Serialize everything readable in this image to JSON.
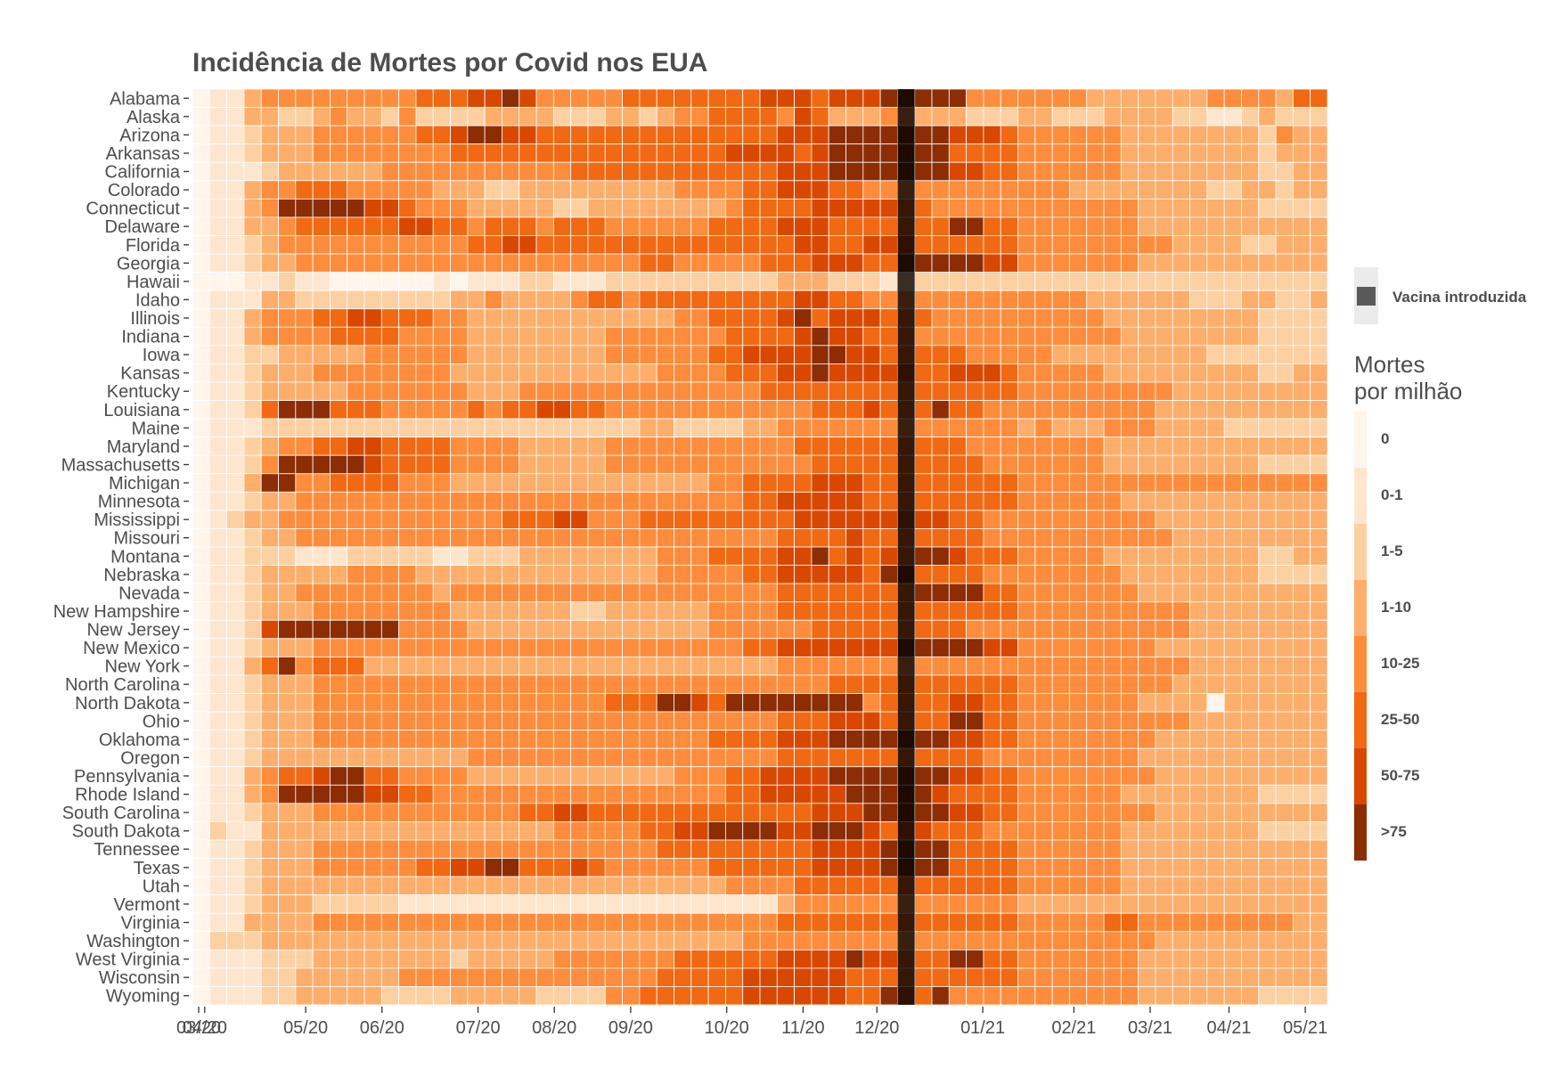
{
  "chart_data": {
    "type": "heatmap",
    "title": "Incidência de Mortes por Covid nos EUA",
    "xlabel": "",
    "ylabel": "",
    "x_ticks": [
      "03/20",
      "04/20",
      "05/20",
      "06/20",
      "07/20",
      "08/20",
      "09/20",
      "10/20",
      "11/20",
      "12/20",
      "01/21",
      "02/21",
      "03/21",
      "04/21",
      "05/21"
    ],
    "x_range": [
      "2020-03-15",
      "2021-06-19"
    ],
    "weeks": 66,
    "states": [
      "Alabama",
      "Alaska",
      "Arizona",
      "Arkansas",
      "California",
      "Colorado",
      "Connecticut",
      "Delaware",
      "Florida",
      "Georgia",
      "Hawaii",
      "Idaho",
      "Illinois",
      "Indiana",
      "Iowa",
      "Kansas",
      "Kentucky",
      "Louisiana",
      "Maine",
      "Maryland",
      "Massachusetts",
      "Michigan",
      "Minnesota",
      "Mississippi",
      "Missouri",
      "Montana",
      "Nebraska",
      "Nevada",
      "New Hampshire",
      "New Jersey",
      "New Mexico",
      "New York",
      "North Carolina",
      "North Dakota",
      "Ohio",
      "Oklahoma",
      "Oregon",
      "Pennsylvania",
      "Rhode Island",
      "South Carolina",
      "South Dakota",
      "Tennessee",
      "Texas",
      "Utah",
      "Vermont",
      "Virginia",
      "Washington",
      "West Virginia",
      "Wisconsin",
      "Wyoming"
    ],
    "category_codes": "Each row string encodes one state's weekly values as category indices (0 = '0', 1 = '0-1', 2 = '1-5', 3 = '1-10', 4 = '10-25', 5 = '25-50', 6 = '50-75', 7 = '>75'); character position = week index, one character per week",
    "rows": [
      "011344444444455566764444455555555666566677777444444433333334444355",
      "011332234332422223333222332344555546533344333222332223333221123222",
      "011233344444455677665555555555555566677777776665444444333333332433",
      "011233344444444555555555555555566665677777775555444444333333332333",
      "011123333334444444444455555555555566677777776655444444333333332233",
      "011344555444443332233333333344445566655444444444444333333332233233",
      "011347777766544433333223333333345555666665544444444444433333332222",
      "011334555555665545554555444444555566655555557755444444433333333333",
      "011234444444444455665555555555555556655666555555444444444333322333",
      "011233444444444444444444445544444555666557777766444444433333333333",
      "000112110000001011122111222222222233322212222222222222222222222222",
      "011133222222222334333345545555555556655444444444444433333322233223",
      "011344455665554433333333333344555567566655544444444443333333332222",
      "011344445555444433333333444444455556766555444444444444333333332222",
      "011223333344444433333333444444556666776655555444443333333332222222",
      "011233344444444333333333333444455566766666556665444443333333332233",
      "011233333444444433344444444444444555555555555555444444444333333333",
      "011257775554444454556655444444444444555655575544444444443333333333",
      "011122222222222222222222223322223344444444444444343334443333222222",
      "011234455665555444433333444444444445555555555444444443333333333333",
      "011247777765555444433333444444444444555555555544444443333333332222",
      "011377445555444333333333333333445555666555555555444444444444444444",
      "011233444444444444444444444444445566666555555555444444333333333333",
      "012334444444444444555664445555555556666666665544444444443333333333",
      "011233444444444444444444444444444455556555555544444444444333333333",
      "011222111222221122233333333444555566756565776555444443333333332233",
      "011233333444433333333333333444445566666577555544444444333333332222",
      "011233444444443444444444444444444455555555777755444444433333333333",
      "011233344444444333333322333333444455555555555555444444444433333333",
      "011267777777444433333333333333444444555555555444444444444433333333",
      "011233344444444444444444444444445566666667777766444444443333333333",
      "011357455533333333333333333333333344444444444444444444444433333333",
      "011233344444444444444444444444444444455555555555444444444333333333",
      "011233344444444444444444555776577777777455556655444444433330333333",
      "011233344444444444444444444444444455566655557755444444444433333333",
      "011233344444444444444444444444555566677777776655444444443333333333",
      "011233333333333344444444444444444455555555555544444444433333333333",
      "011345567755444433333333333344455666677777776655444444443333333333",
      "011347777766554444444444444444455666667777765555444444333333332222",
      "011233344444444444455665555555555555666777776655444444443333333333",
      "021133333333333333333444445566777766777656655544444444333333332222",
      "011233344444444444444444444555555555666677775555444444333333333333",
      "011233344444455667755565444444555555666677775555444444333333333333",
      "011233333333333333333333333333344445555555555555444444333333333333",
      "011233322222111111111111111111111134444444444444333333333333333333",
      "011333344444444444444444444444444455555555555555444445544444444433",
      "022233333333333333333333333333334444444444444444444444443333333333",
      "011122233333333233333444444455555566667665557755444444433333333333",
      "011122333333444444444444444555556666665555555555444444433333333333",
      "011122333332222333332222445555556666665576574444444444433333332222"
    ],
    "vaccine_week_index": 41,
    "legend": {
      "vaccine_label": "Vacina introduzida",
      "vaccine_color": "#595959",
      "title_line1": "Mortes",
      "title_line2": "por milhão",
      "categories": [
        "0",
        "0-1",
        "1-5",
        "1-10",
        "10-25",
        "25-50",
        "50-75",
        ">75"
      ],
      "colors": [
        "#fff5eb",
        "#fee6ce",
        "#fdd0a2",
        "#fdae6b",
        "#fd8d3c",
        "#f16913",
        "#d94801",
        "#8c2d04"
      ]
    },
    "legend_position": "right",
    "grid": false
  }
}
